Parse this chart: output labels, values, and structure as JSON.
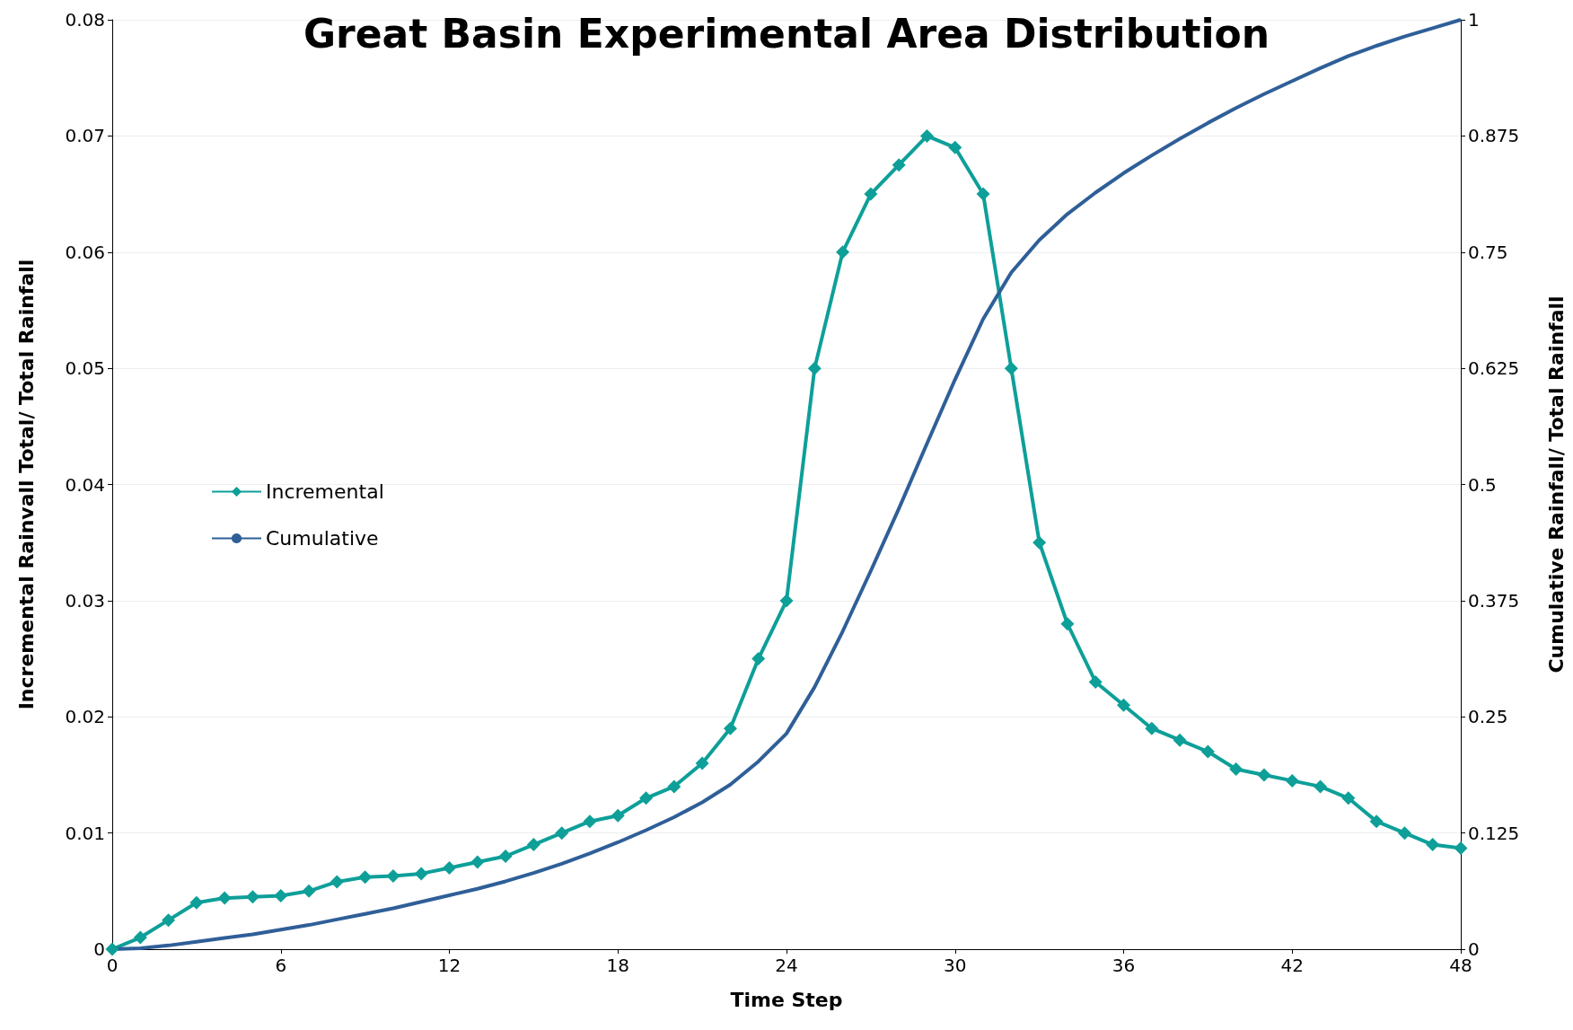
{
  "chart_data": {
    "type": "line",
    "title": "Great Basin Experimental Area Distribution",
    "xlabel": "Time Step",
    "ylabel": "Incremental Rainvall Total/ Total Rainfall",
    "y2label": "Cumulative Rainfall/ Total Rainfall",
    "x": [
      0,
      1,
      2,
      3,
      4,
      5,
      6,
      7,
      8,
      9,
      10,
      11,
      12,
      13,
      14,
      15,
      16,
      17,
      18,
      19,
      20,
      21,
      22,
      23,
      24,
      25,
      26,
      27,
      28,
      29,
      30,
      31,
      32,
      33,
      34,
      35,
      36,
      37,
      38,
      39,
      40,
      41,
      42,
      43,
      44,
      45,
      46,
      47,
      48
    ],
    "series": [
      {
        "name": "Incremental",
        "color": "#0e9f99",
        "marker": "diamond",
        "values": [
          0,
          0.001,
          0.0025,
          0.004,
          0.0044,
          0.0045,
          0.0046,
          0.005,
          0.0058,
          0.0062,
          0.0063,
          0.0065,
          0.007,
          0.0075,
          0.008,
          0.009,
          0.01,
          0.011,
          0.0115,
          0.013,
          0.014,
          0.016,
          0.019,
          0.025,
          0.03,
          0.05,
          0.06,
          0.065,
          0.0675,
          0.07,
          0.069,
          0.065,
          0.05,
          0.035,
          0.028,
          0.023,
          0.021,
          0.019,
          0.018,
          0.017,
          0.0155,
          0.015,
          0.0145,
          0.014,
          0.013,
          0.011,
          0.01,
          0.009,
          0.0087
        ]
      },
      {
        "name": "Cumulative",
        "color": "#2f5f98",
        "marker": "none",
        "axis": "y2",
        "values": [
          0,
          0.001,
          0.004,
          0.008,
          0.012,
          0.016,
          0.021,
          0.026,
          0.032,
          0.038,
          0.044,
          0.051,
          0.058,
          0.065,
          0.073,
          0.082,
          0.092,
          0.103,
          0.115,
          0.128,
          0.142,
          0.158,
          0.177,
          0.202,
          0.232,
          0.282,
          0.342,
          0.407,
          0.474,
          0.544,
          0.613,
          0.678,
          0.728,
          0.763,
          0.791,
          0.814,
          0.835,
          0.854,
          0.872,
          0.889,
          0.905,
          0.92,
          0.934,
          0.948,
          0.961,
          0.972,
          0.982,
          0.991,
          1
        ]
      }
    ],
    "xlim": [
      0,
      48
    ],
    "xticks": [
      0,
      6,
      12,
      18,
      24,
      30,
      36,
      42,
      48
    ],
    "ylim": [
      0,
      0.08
    ],
    "yticks": [
      0,
      0.01,
      0.02,
      0.03,
      0.04,
      0.05,
      0.06,
      0.07,
      0.08
    ],
    "y2lim": [
      0,
      1
    ],
    "y2ticks": [
      0,
      0.125,
      0.25,
      0.375,
      0.5,
      0.625,
      0.75,
      0.875,
      1
    ],
    "grid": "y",
    "legend": "left",
    "line_style": "solid"
  }
}
